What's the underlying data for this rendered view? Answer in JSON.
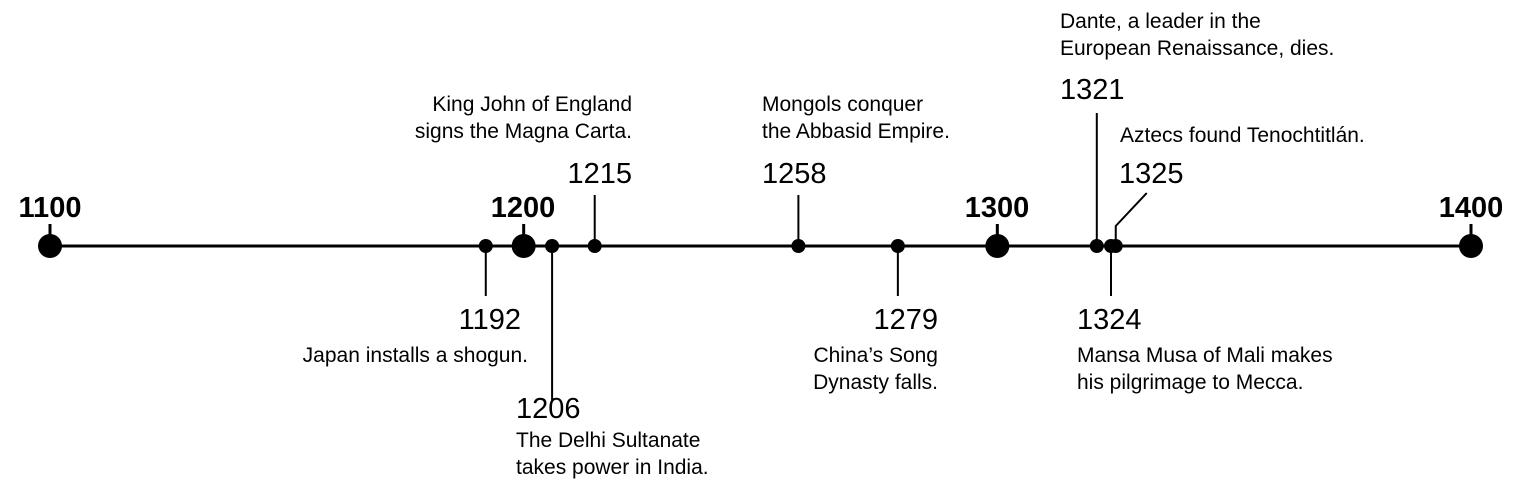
{
  "axis": {
    "start": 1100,
    "end": 1400,
    "centuries": [
      "1100",
      "1200",
      "1300",
      "1400"
    ]
  },
  "events": [
    {
      "year": "1192",
      "text": [
        "Japan installs a shogun."
      ],
      "side": "below"
    },
    {
      "year": "1206",
      "text": [
        "The Delhi Sultanate",
        "takes power in India."
      ],
      "side": "below"
    },
    {
      "year": "1215",
      "text": [
        "King John of England",
        "signs the Magna Carta."
      ],
      "side": "above"
    },
    {
      "year": "1258",
      "text": [
        "Mongols conquer",
        "the Abbasid Empire."
      ],
      "side": "above"
    },
    {
      "year": "1279",
      "text": [
        "China’s Song",
        "Dynasty falls."
      ],
      "side": "below"
    },
    {
      "year": "1321",
      "text": [
        "Dante, a leader in the",
        "European Renaissance, dies."
      ],
      "side": "above"
    },
    {
      "year": "1324",
      "text": [
        "Mansa Musa of Mali makes",
        "his pilgrimage to Mecca."
      ],
      "side": "below"
    },
    {
      "year": "1325",
      "text": [
        "Aztecs found Tenochtitlán."
      ],
      "side": "above"
    }
  ]
}
